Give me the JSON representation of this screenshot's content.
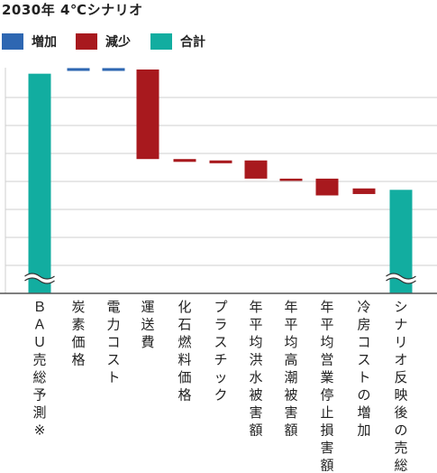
{
  "title": "2030年 4℃シナリオ",
  "legend": [
    {
      "label": "増加",
      "color": "#2e67b2"
    },
    {
      "label": "減少",
      "color": "#a8191e"
    },
    {
      "label": "合計",
      "color": "#12ada0"
    }
  ],
  "chart_data": {
    "type": "waterfall",
    "title": "2030年 4℃シナリオ",
    "xlabel": "",
    "ylabel": "",
    "grid": true,
    "axis_break": true,
    "ylim": [
      0,
      8
    ],
    "categories": [
      "ＢＡＵ売総予測※",
      "炭素価格",
      "電力コスト",
      "運送費",
      "化石燃料価格",
      "プラスチック",
      "年平均洪水被害額",
      "年平均高潮被害額",
      "年平均営業停止損害額",
      "冷房コストの増加",
      "シナリオ反映後の売総"
    ],
    "bars": [
      {
        "kind": "total",
        "start": 0,
        "end": 7.85
      },
      {
        "kind": "increase",
        "start": 7.95,
        "end": 8.05
      },
      {
        "kind": "increase",
        "start": 7.95,
        "end": 8.05
      },
      {
        "kind": "decrease",
        "start": 8.0,
        "end": 4.8
      },
      {
        "kind": "decrease",
        "start": 4.8,
        "end": 4.7
      },
      {
        "kind": "decrease",
        "start": 4.75,
        "end": 4.65
      },
      {
        "kind": "decrease",
        "start": 4.75,
        "end": 4.1
      },
      {
        "kind": "decrease",
        "start": 4.1,
        "end": 4.02
      },
      {
        "kind": "decrease",
        "start": 4.1,
        "end": 3.5
      },
      {
        "kind": "decrease",
        "start": 3.75,
        "end": 3.55
      },
      {
        "kind": "total",
        "start": 0,
        "end": 3.7
      }
    ]
  }
}
